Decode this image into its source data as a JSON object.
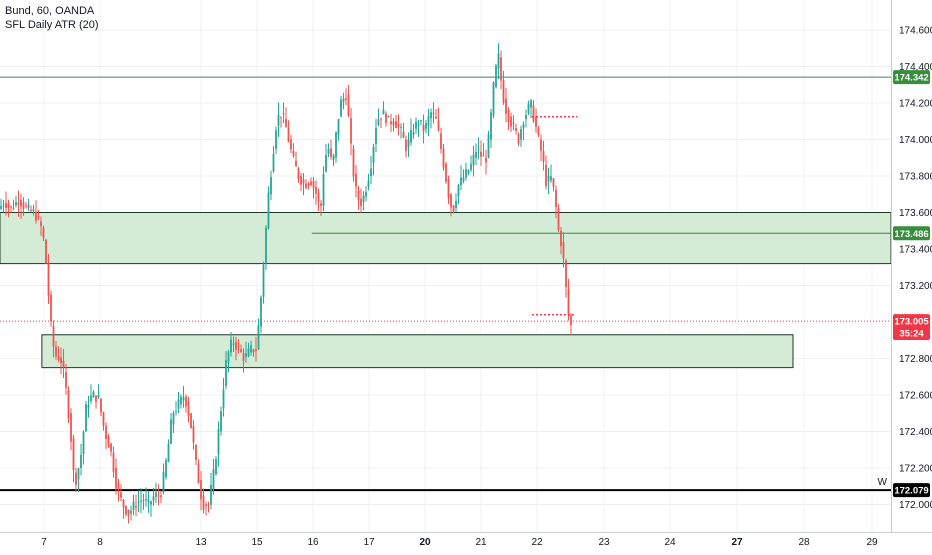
{
  "header": {
    "symbol_line": "Bund, 60, OANDA",
    "indicator_line": "SFL Daily ATR (20)"
  },
  "colors": {
    "up": "#26a69a",
    "down": "#ef5350",
    "zone_fill": "#d4ebd6",
    "zone_border": "#1b3a22",
    "green_line": "#388e3c",
    "black_line": "#000000",
    "price_red": "#f23645",
    "grid": "#eef0f3",
    "axis_text": "#131722"
  },
  "chart_data": {
    "type": "candlestick",
    "title": "Bund, 60, OANDA",
    "ylim": [
      171.93,
      174.68
    ],
    "y_ticks": [
      "174.600",
      "174.400",
      "174.200",
      "174.000",
      "173.800",
      "173.600",
      "173.400",
      "173.200",
      "172.800",
      "172.600",
      "172.400",
      "172.200",
      "172.000"
    ],
    "x_ticks": [
      "7",
      "8",
      "13",
      "15",
      "16",
      "17",
      "20",
      "21",
      "22",
      "23",
      "24",
      "27",
      "28",
      "29"
    ],
    "bold_x_ticks": [
      "20",
      "27"
    ],
    "price_labels": [
      {
        "label": "174.342",
        "value": 174.342,
        "color": "#388e3c"
      },
      {
        "label": "173.486",
        "value": 173.486,
        "color": "#388e3c"
      },
      {
        "label": "173.005",
        "value": 173.005,
        "color": "#f23645"
      },
      {
        "label": "35:24",
        "value": 172.94,
        "color": "#f23645"
      },
      {
        "label": "172.079",
        "value": 172.079,
        "color": "#000000"
      }
    ],
    "horizontal_lines": [
      {
        "value": 174.342,
        "style": "solid",
        "color": "#388e3c",
        "x_start": 0
      },
      {
        "value": 173.486,
        "style": "solid",
        "color": "#388e3c",
        "x_start": 0.35
      },
      {
        "value": 172.079,
        "style": "solid",
        "color": "#000000",
        "x_start": 0,
        "label": "W"
      },
      {
        "value": 173.005,
        "style": "dotted",
        "color": "#f23645",
        "x_start": 0
      }
    ],
    "zones": [
      {
        "y_top": 173.6,
        "y_bottom": 173.32,
        "x_start": 0,
        "x_end": 1.0
      },
      {
        "y_top": 172.93,
        "y_bottom": 172.75,
        "x_start": 0.047,
        "x_end": 0.89
      }
    ],
    "markers": [
      {
        "value": 174.125,
        "x_start": 0.597,
        "x_end": 0.648,
        "color": "#f23645"
      },
      {
        "value": 173.04,
        "x_start": 0.597,
        "x_end": 0.645,
        "color": "#f23645"
      }
    ],
    "path": [
      [
        0,
        173.62
      ],
      [
        6,
        173.66
      ],
      [
        12,
        173.62
      ],
      [
        20,
        173.67
      ],
      [
        28,
        173.62
      ],
      [
        36,
        173.6
      ],
      [
        44,
        173.5
      ],
      [
        48,
        173.3
      ],
      [
        52,
        173.0
      ],
      [
        56,
        172.82
      ],
      [
        62,
        172.8
      ],
      [
        66,
        172.7
      ],
      [
        72,
        172.4
      ],
      [
        76,
        172.1
      ],
      [
        82,
        172.25
      ],
      [
        88,
        172.55
      ],
      [
        94,
        172.6
      ],
      [
        100,
        172.58
      ],
      [
        106,
        172.4
      ],
      [
        112,
        172.3
      ],
      [
        118,
        172.1
      ],
      [
        124,
        172.0
      ],
      [
        130,
        171.95
      ],
      [
        136,
        172.0
      ],
      [
        144,
        172.03
      ],
      [
        150,
        172.0
      ],
      [
        156,
        172.05
      ],
      [
        162,
        172.05
      ],
      [
        168,
        172.25
      ],
      [
        174,
        172.5
      ],
      [
        180,
        172.55
      ],
      [
        186,
        172.6
      ],
      [
        192,
        172.45
      ],
      [
        198,
        172.2
      ],
      [
        204,
        172.0
      ],
      [
        210,
        172.0
      ],
      [
        216,
        172.2
      ],
      [
        222,
        172.5
      ],
      [
        228,
        172.8
      ],
      [
        234,
        172.9
      ],
      [
        240,
        172.85
      ],
      [
        246,
        172.8
      ],
      [
        252,
        172.85
      ],
      [
        258,
        172.85
      ],
      [
        262,
        173.1
      ],
      [
        266,
        173.4
      ],
      [
        270,
        173.7
      ],
      [
        274,
        173.9
      ],
      [
        278,
        174.1
      ],
      [
        282,
        174.15
      ],
      [
        286,
        174.1
      ],
      [
        290,
        174.0
      ],
      [
        294,
        173.9
      ],
      [
        300,
        173.8
      ],
      [
        306,
        173.75
      ],
      [
        312,
        173.78
      ],
      [
        318,
        173.7
      ],
      [
        322,
        173.6
      ],
      [
        326,
        173.9
      ],
      [
        330,
        173.95
      ],
      [
        334,
        173.85
      ],
      [
        338,
        174.05
      ],
      [
        342,
        174.2
      ],
      [
        348,
        174.25
      ],
      [
        354,
        173.85
      ],
      [
        358,
        173.7
      ],
      [
        362,
        173.65
      ],
      [
        366,
        173.7
      ],
      [
        372,
        173.85
      ],
      [
        378,
        174.1
      ],
      [
        384,
        174.15
      ],
      [
        390,
        174.1
      ],
      [
        396,
        174.1
      ],
      [
        402,
        174.05
      ],
      [
        408,
        173.95
      ],
      [
        414,
        174.05
      ],
      [
        420,
        174.1
      ],
      [
        426,
        174.05
      ],
      [
        432,
        174.15
      ],
      [
        438,
        174.1
      ],
      [
        444,
        173.9
      ],
      [
        450,
        173.7
      ],
      [
        454,
        173.6
      ],
      [
        460,
        173.75
      ],
      [
        466,
        173.8
      ],
      [
        472,
        173.85
      ],
      [
        478,
        173.95
      ],
      [
        484,
        173.9
      ],
      [
        488,
        173.9
      ],
      [
        492,
        174.1
      ],
      [
        496,
        174.35
      ],
      [
        500,
        174.45
      ],
      [
        504,
        174.25
      ],
      [
        508,
        174.15
      ],
      [
        512,
        174.1
      ],
      [
        516,
        174.05
      ],
      [
        520,
        174.0
      ],
      [
        524,
        174.1
      ],
      [
        528,
        174.15
      ],
      [
        532,
        174.2
      ],
      [
        536,
        174.1
      ],
      [
        540,
        174.0
      ],
      [
        544,
        173.9
      ],
      [
        548,
        173.75
      ],
      [
        552,
        173.8
      ],
      [
        556,
        173.7
      ],
      [
        560,
        173.5
      ],
      [
        564,
        173.4
      ],
      [
        568,
        173.15
      ],
      [
        571,
        172.98
      ]
    ]
  }
}
